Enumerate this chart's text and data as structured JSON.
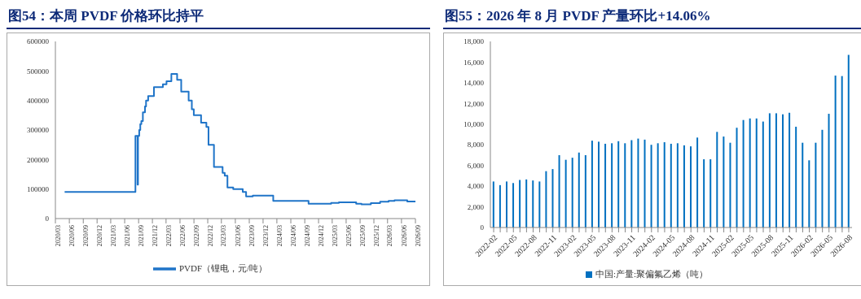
{
  "chart_data": [
    {
      "type": "step",
      "title": "图54：本周 PVDF 价格环比持平",
      "legend": "bottom",
      "grid": false,
      "x": [
        "2020-05-01",
        "2021-08-11",
        "2021-08-25",
        "2021-08-28",
        "2021-09-05",
        "2021-09-12",
        "2021-09-19",
        "2021-09-29",
        "2021-10-13",
        "2021-10-20",
        "2021-11-03",
        "2021-12-11",
        "2022-02-08",
        "2022-03-04",
        "2022-04-05",
        "2022-05-13",
        "2022-06-09",
        "2022-07-28",
        "2022-08-18",
        "2022-08-31",
        "2022-10-18",
        "2022-11-22",
        "2022-12-06",
        "2023-01-11",
        "2023-03-09",
        "2023-03-23",
        "2023-04-10",
        "2023-05-18",
        "2023-07-20",
        "2023-08-11",
        "2023-09-24",
        "2024-02-06",
        "2024-09-26",
        "2025-02-22",
        "2025-04-14",
        "2025-08-06",
        "2025-09-10",
        "2025-11-11",
        "2026-01-11",
        "2026-03-08",
        "2026-04-16",
        "2026-07-09",
        "2026-09-01"
      ],
      "series": [
        {
          "name": "PVDF（锂电，元/吨）",
          "color": "#1f74c8",
          "values": [
            90000,
            280000,
            115000,
            280000,
            300000,
            320000,
            330000,
            360000,
            380000,
            400000,
            415000,
            445000,
            455000,
            465000,
            490000,
            470000,
            430000,
            400000,
            370000,
            350000,
            325000,
            310000,
            250000,
            175000,
            155000,
            145000,
            105000,
            100000,
            90000,
            75000,
            78000,
            60000,
            50000,
            53000,
            55000,
            50000,
            48000,
            52000,
            57000,
            60000,
            62000,
            58000,
            58000
          ]
        }
      ],
      "xlim": [
        "2020-03-01",
        "2026-09-01"
      ],
      "xticks": [
        {
          "value": "2020-03-01",
          "label": "2020/03"
        },
        {
          "value": "2020-06-01",
          "label": "2020/06"
        },
        {
          "value": "2020-09-01",
          "label": "2020/09"
        },
        {
          "value": "2020-12-01",
          "label": "2020/12"
        },
        {
          "value": "2021-03-01",
          "label": "2021/03"
        },
        {
          "value": "2021-06-01",
          "label": "2021/06"
        },
        {
          "value": "2021-09-01",
          "label": "2021/09"
        },
        {
          "value": "2021-12-01",
          "label": "2021/12"
        },
        {
          "value": "2022-03-01",
          "label": "2022/03"
        },
        {
          "value": "2022-06-01",
          "label": "2022/06"
        },
        {
          "value": "2022-09-01",
          "label": "2022/09"
        },
        {
          "value": "2022-12-01",
          "label": "2022/12"
        },
        {
          "value": "2023-03-01",
          "label": "2023/03"
        },
        {
          "value": "2023-06-01",
          "label": "2023/06"
        },
        {
          "value": "2023-09-01",
          "label": "2023/09"
        },
        {
          "value": "2023-12-01",
          "label": "2023/12"
        },
        {
          "value": "2024-03-01",
          "label": "2024/03"
        },
        {
          "value": "2024-06-01",
          "label": "2024/06"
        },
        {
          "value": "2024-09-01",
          "label": "2024/09"
        },
        {
          "value": "2024-12-01",
          "label": "2024/12"
        },
        {
          "value": "2025-03-01",
          "label": "2025/03"
        },
        {
          "value": "2025-06-01",
          "label": "2025/06"
        },
        {
          "value": "2025-09-01",
          "label": "2025/09"
        },
        {
          "value": "2025-12-01",
          "label": "2025/12"
        },
        {
          "value": "2026-03-01",
          "label": "2026/03"
        },
        {
          "value": "2026-06-01",
          "label": "2026/06"
        },
        {
          "value": "2026-09-01",
          "label": "2026/09"
        }
      ],
      "ylim": [
        0,
        600000
      ],
      "yticks": [
        0,
        100000,
        200000,
        300000,
        400000,
        500000,
        600000
      ]
    },
    {
      "type": "bar",
      "title": "图55：2026 年 8 月 PVDF 产量环比+14.06%",
      "legend": "bottom",
      "grid": false,
      "categories": [
        "2022-02",
        null,
        null,
        "2022-05",
        null,
        null,
        "2022-08",
        null,
        null,
        "2022-11",
        null,
        null,
        "2023-02",
        null,
        null,
        "2023-05",
        null,
        null,
        "2023-08",
        null,
        null,
        "2023-11",
        null,
        null,
        "2024-02",
        null,
        null,
        "2024-05",
        null,
        null,
        "2024-08",
        null,
        null,
        "2024-11",
        null,
        null,
        "2025-02",
        null,
        null,
        "2025-05",
        null,
        null,
        "2025-08",
        null,
        null,
        "2025-11",
        null,
        null,
        "2026-02",
        null,
        null,
        "2026-05",
        null,
        null,
        "2026-08"
      ],
      "series": [
        {
          "name": "中国:产量:聚偏氟乙烯（吨）",
          "color": "#0070c0",
          "values": [
            4450,
            4100,
            4450,
            4300,
            4600,
            4650,
            4550,
            4450,
            5450,
            5650,
            7000,
            6550,
            6750,
            7250,
            7000,
            8400,
            8300,
            8100,
            8150,
            8350,
            8150,
            8450,
            8600,
            8500,
            8000,
            8150,
            8250,
            8100,
            8150,
            7950,
            7850,
            8700,
            6600,
            6600,
            9250,
            8800,
            8200,
            9650,
            10400,
            10550,
            10550,
            10250,
            11050,
            11050,
            10950,
            11100,
            9750,
            8200,
            6500,
            8200,
            9450,
            11000,
            14700,
            14650,
            16700
          ]
        }
      ],
      "ylim": [
        0,
        18000
      ],
      "yticks": [
        0,
        {
          "value": 2000,
          "label": "2,000"
        },
        {
          "value": 4000,
          "label": "4,000"
        },
        {
          "value": 6000,
          "label": "6,000"
        },
        {
          "value": 8000,
          "label": "8,000"
        },
        {
          "value": 10000,
          "label": "10,000"
        },
        {
          "value": 12000,
          "label": "12,000"
        },
        {
          "value": 14000,
          "label": "14,000"
        },
        {
          "value": 16000,
          "label": "16,000"
        },
        {
          "value": 18000,
          "label": "18,000"
        }
      ]
    }
  ]
}
